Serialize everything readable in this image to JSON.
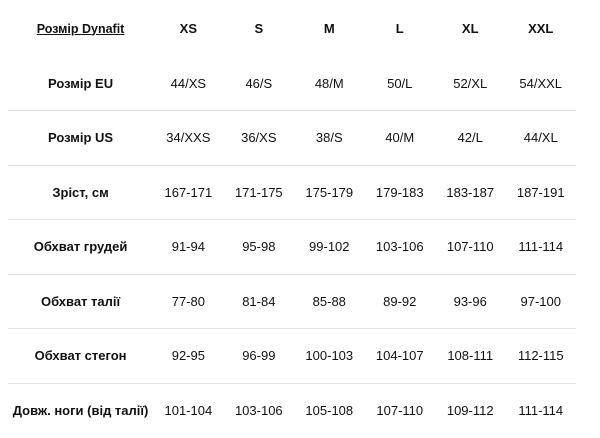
{
  "table": {
    "corner_label": "Розмір Dynafit",
    "sizes": [
      "XS",
      "S",
      "M",
      "L",
      "XL",
      "XXL"
    ],
    "rows": [
      {
        "label": "Розмір EU",
        "values": [
          "44/XS",
          "46/S",
          "48/M",
          "50/L",
          "52/XL",
          "54/XXL"
        ]
      },
      {
        "label": "Розмір US",
        "values": [
          "34/XXS",
          "36/XS",
          "38/S",
          "40/M",
          "42/L",
          "44/XL"
        ]
      },
      {
        "label": "Зріст, см",
        "values": [
          "167-171",
          "171-175",
          "175-179",
          "179-183",
          "183-187",
          "187-191"
        ]
      },
      {
        "label": "Обхват грудей",
        "values": [
          "91-94",
          "95-98",
          "99-102",
          "103-106",
          "107-110",
          "111-114"
        ]
      },
      {
        "label": "Обхват талії",
        "values": [
          "77-80",
          "81-84",
          "85-88",
          "89-92",
          "93-96",
          "97-100"
        ]
      },
      {
        "label": "Обхват стегон",
        "values": [
          "92-95",
          "96-99",
          "100-103",
          "104-107",
          "108-111",
          "112-115"
        ]
      },
      {
        "label": "Довж. ноги (від талії)",
        "values": [
          "101-104",
          "103-106",
          "105-108",
          "107-110",
          "109-112",
          "111-114"
        ]
      }
    ]
  }
}
